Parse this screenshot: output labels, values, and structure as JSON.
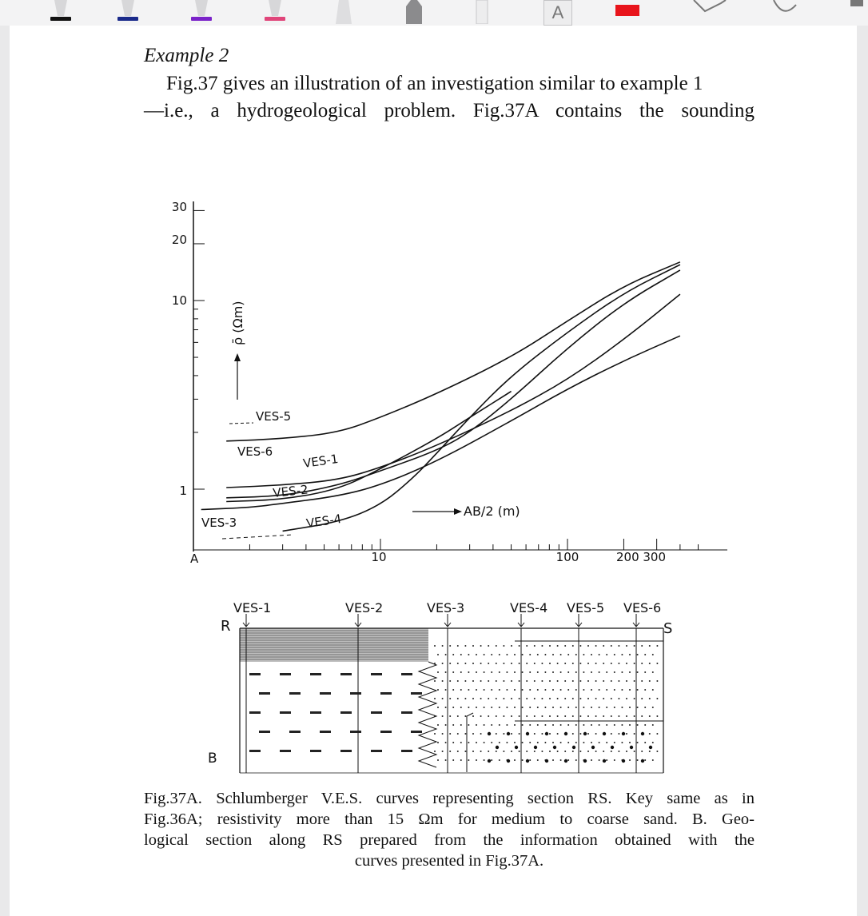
{
  "document": {
    "heading": "Example 2",
    "paragraph_lines": [
      "Fig.37 gives an illustration of an investigation similar to example 1",
      "—i.e., a hydrogeological problem. Fig.37A contains the sounding"
    ],
    "caption_lines": [
      "Fig.37A. Schlumberger V.E.S. curves representing section RS. Key same as in",
      "Fig.36A; resistivity more than 15 Ωm for medium to coarse sand. B. Geo-",
      "logical section along RS prepared from the information obtained with the",
      "curves presented in Fig.37A."
    ]
  },
  "toolbar": {
    "pen_colors": [
      "#111111",
      "#1a2a8a",
      "#7a22c9",
      "#e0457a"
    ],
    "text_tool_glyph": "A",
    "red_marker_color": "#e8141b"
  },
  "chart_data": {
    "type": "line",
    "panel_label": "A",
    "scale": "log-log",
    "xlabel": "AB/2 (m)",
    "ylabel": "ρ̄ (Ωm)",
    "x_tick_labels": [
      "10",
      "100",
      "200 300"
    ],
    "y_tick_labels": [
      "30",
      "20",
      "10",
      "1"
    ],
    "xlim": [
      1,
      500
    ],
    "ylim": [
      0.6,
      30
    ],
    "series": [
      {
        "name": "VES-5",
        "x": [
          1.5,
          3,
          6,
          10,
          20,
          50,
          100,
          200,
          400
        ],
        "y": [
          1.8,
          1.85,
          2.0,
          2.4,
          3.2,
          5.0,
          7.8,
          12.0,
          16.0
        ]
      },
      {
        "name": "VES-6",
        "x": [
          1.5,
          3,
          6,
          10,
          20,
          50,
          100,
          200,
          400
        ],
        "y": [
          1.02,
          1.05,
          1.12,
          1.3,
          1.7,
          2.6,
          3.8,
          6.2,
          10.8
        ]
      },
      {
        "name": "VES-1",
        "x": [
          1.5,
          3,
          6,
          10,
          20,
          30,
          50,
          100,
          200,
          400
        ],
        "y": [
          0.9,
          0.92,
          1.05,
          1.25,
          1.6,
          2.0,
          3.0,
          5.6,
          9.7,
          14.5
        ]
      },
      {
        "name": "VES-2",
        "x": [
          1.5,
          3,
          6,
          10,
          20,
          30,
          50
        ],
        "y": [
          0.86,
          0.88,
          1.0,
          1.28,
          1.85,
          2.4,
          3.3
        ]
      },
      {
        "name": "VES-3",
        "x": [
          1.1,
          2,
          3,
          6,
          10,
          20,
          50,
          100,
          200,
          400
        ],
        "y": [
          0.78,
          0.8,
          0.84,
          0.92,
          1.05,
          1.4,
          2.3,
          3.4,
          4.8,
          6.5
        ]
      },
      {
        "name": "VES-4",
        "x": [
          3,
          6,
          10,
          15,
          20,
          30,
          50,
          100,
          200,
          400
        ],
        "y": [
          0.6,
          0.67,
          0.82,
          1.15,
          1.55,
          2.4,
          4.0,
          6.8,
          11.0,
          15.5
        ]
      }
    ]
  },
  "section": {
    "panel_label": "B",
    "end_labels": [
      "R",
      "S"
    ],
    "ves_labels": [
      "VES-1",
      "VES-2",
      "VES-3",
      "VES-4",
      "VES-5",
      "VES-6"
    ]
  }
}
